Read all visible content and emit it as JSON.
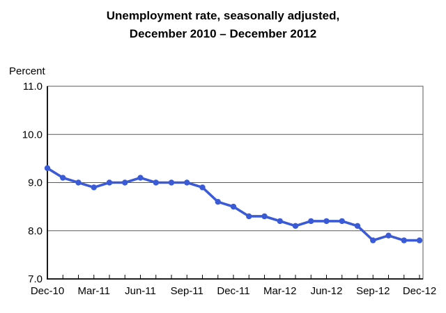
{
  "chart": {
    "title_line1": "Unemployment rate, seasonally adjusted,",
    "title_line2": "December 2010 – December 2012",
    "unit_label": "Percent"
  },
  "chart_data": {
    "type": "line",
    "title": "Unemployment rate, seasonally adjusted, December 2010 – December 2012",
    "xlabel": "",
    "ylabel": "Percent",
    "x": [
      "Dec-10",
      "Jan-11",
      "Feb-11",
      "Mar-11",
      "Apr-11",
      "May-11",
      "Jun-11",
      "Jul-11",
      "Aug-11",
      "Sep-11",
      "Oct-11",
      "Nov-11",
      "Dec-11",
      "Jan-12",
      "Feb-12",
      "Mar-12",
      "Apr-12",
      "May-12",
      "Jun-12",
      "Jul-12",
      "Aug-12",
      "Sep-12",
      "Oct-12",
      "Nov-12",
      "Dec-12"
    ],
    "values": [
      9.3,
      9.1,
      9.0,
      8.9,
      9.0,
      9.0,
      9.1,
      9.0,
      9.0,
      9.0,
      8.9,
      8.6,
      8.5,
      8.3,
      8.3,
      8.2,
      8.1,
      8.2,
      8.2,
      8.2,
      8.1,
      7.8,
      7.9,
      7.8,
      7.8
    ],
    "x_tick_labels": [
      "Dec-10",
      "Mar-11",
      "Jun-11",
      "Sep-11",
      "Dec-11",
      "Mar-12",
      "Jun-12",
      "Sep-12",
      "Dec-12"
    ],
    "x_tick_every": 3,
    "y_ticks": [
      7.0,
      8.0,
      9.0,
      10.0,
      11.0
    ],
    "ylim": [
      7.0,
      11.0
    ],
    "grid": true,
    "legend_position": "none",
    "line_color": "#3B5BD6",
    "marker": "circle",
    "gridline_color": "#595959",
    "axis_color": "#000000"
  }
}
